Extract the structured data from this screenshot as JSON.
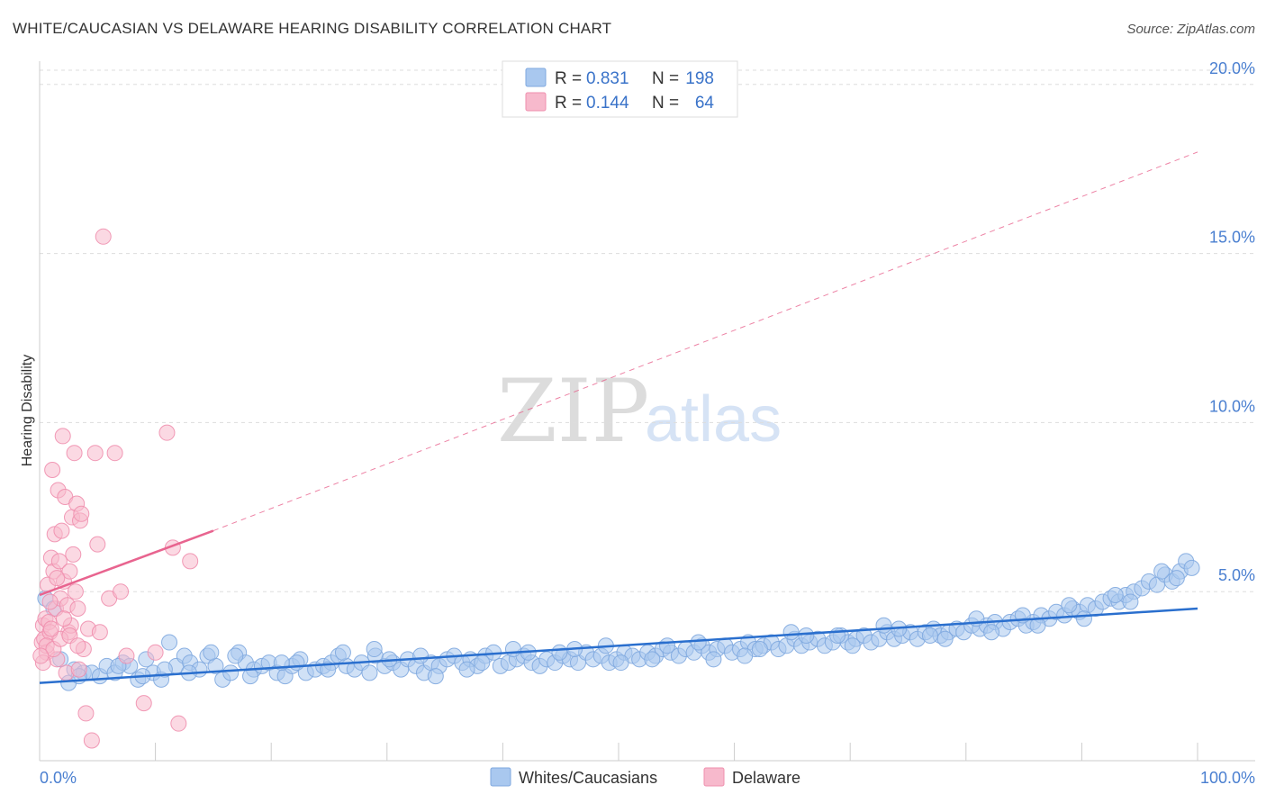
{
  "header": {
    "title": "WHITE/CAUCASIAN VS DELAWARE HEARING DISABILITY CORRELATION CHART",
    "source": "Source: ZipAtlas.com"
  },
  "watermark": {
    "zip": "ZIP",
    "atlas": "atlas"
  },
  "legend": {
    "r_label": "R =",
    "n_label": "N =",
    "series": [
      {
        "name": "Whites/Caucasians",
        "r": "0.831",
        "n": "198",
        "color": "#a9c8ef",
        "stroke": "#7fa8df",
        "line": "#2a6fce"
      },
      {
        "name": "Delaware",
        "r": "0.144",
        "n": "64",
        "color": "#f7b9cc",
        "stroke": "#ef8fae",
        "line": "#e8648f"
      }
    ]
  },
  "chart_data": {
    "type": "scatter",
    "title": "WHITE/CAUCASIAN VS DELAWARE HEARING DISABILITY CORRELATION CHART",
    "xlabel": "",
    "ylabel": "Hearing Disability",
    "xlim": [
      0,
      100
    ],
    "ylim": [
      0,
      20.5
    ],
    "x_tick_labels": [
      "0.0%",
      "100.0%"
    ],
    "y_ticks": [
      {
        "value": 5,
        "label": "5.0%"
      },
      {
        "value": 10,
        "label": "10.0%"
      },
      {
        "value": 15,
        "label": "15.0%"
      },
      {
        "value": 20,
        "label": "20.0%"
      }
    ],
    "grid": true,
    "series": [
      {
        "name": "Whites/Caucasians",
        "r": 0.831,
        "n": 198,
        "trend": {
          "x0": 0,
          "y0": 2.3,
          "x1": 100,
          "y1": 4.5,
          "style": "solid"
        },
        "points": [
          [
            0.5,
            4.8
          ],
          [
            1.2,
            4.5
          ],
          [
            1.8,
            3.0
          ],
          [
            2.5,
            2.3
          ],
          [
            3.0,
            2.7
          ],
          [
            3.8,
            2.6
          ],
          [
            4.5,
            2.6
          ],
          [
            5.2,
            2.5
          ],
          [
            5.8,
            2.8
          ],
          [
            6.5,
            2.6
          ],
          [
            7.2,
            2.9
          ],
          [
            7.8,
            2.8
          ],
          [
            8.5,
            2.4
          ],
          [
            9.2,
            3.0
          ],
          [
            9.8,
            2.6
          ],
          [
            10.5,
            2.4
          ],
          [
            11.2,
            3.5
          ],
          [
            11.8,
            2.8
          ],
          [
            12.5,
            3.1
          ],
          [
            13.0,
            2.9
          ],
          [
            13.8,
            2.7
          ],
          [
            14.5,
            3.1
          ],
          [
            15.2,
            2.8
          ],
          [
            15.8,
            2.4
          ],
          [
            16.5,
            2.6
          ],
          [
            17.2,
            3.2
          ],
          [
            17.8,
            2.9
          ],
          [
            18.5,
            2.7
          ],
          [
            19.2,
            2.8
          ],
          [
            19.8,
            2.9
          ],
          [
            20.5,
            2.6
          ],
          [
            21.2,
            2.5
          ],
          [
            21.8,
            2.8
          ],
          [
            22.5,
            3.0
          ],
          [
            23.0,
            2.6
          ],
          [
            23.8,
            2.7
          ],
          [
            24.5,
            2.8
          ],
          [
            25.2,
            2.9
          ],
          [
            25.8,
            3.1
          ],
          [
            26.5,
            2.8
          ],
          [
            27.2,
            2.7
          ],
          [
            27.8,
            2.9
          ],
          [
            28.5,
            2.6
          ],
          [
            29.0,
            3.1
          ],
          [
            29.8,
            2.8
          ],
          [
            30.5,
            2.9
          ],
          [
            31.2,
            2.7
          ],
          [
            31.8,
            3.0
          ],
          [
            32.5,
            2.8
          ],
          [
            33.2,
            2.6
          ],
          [
            33.8,
            2.9
          ],
          [
            34.5,
            2.8
          ],
          [
            35.2,
            3.0
          ],
          [
            35.8,
            3.1
          ],
          [
            36.5,
            2.9
          ],
          [
            37.2,
            3.0
          ],
          [
            37.8,
            2.8
          ],
          [
            38.5,
            3.1
          ],
          [
            39.2,
            3.2
          ],
          [
            39.8,
            2.8
          ],
          [
            40.5,
            2.9
          ],
          [
            41.2,
            3.0
          ],
          [
            41.8,
            3.1
          ],
          [
            42.5,
            2.9
          ],
          [
            43.2,
            2.8
          ],
          [
            43.8,
            3.0
          ],
          [
            44.5,
            2.9
          ],
          [
            45.2,
            3.1
          ],
          [
            45.8,
            3.0
          ],
          [
            46.5,
            2.9
          ],
          [
            47.2,
            3.2
          ],
          [
            47.8,
            3.0
          ],
          [
            48.5,
            3.1
          ],
          [
            49.2,
            2.9
          ],
          [
            49.8,
            3.0
          ],
          [
            50.5,
            3.2
          ],
          [
            51.2,
            3.1
          ],
          [
            51.8,
            3.0
          ],
          [
            52.5,
            3.2
          ],
          [
            53.2,
            3.1
          ],
          [
            53.8,
            3.3
          ],
          [
            54.5,
            3.2
          ],
          [
            55.2,
            3.1
          ],
          [
            55.8,
            3.3
          ],
          [
            56.5,
            3.2
          ],
          [
            57.2,
            3.4
          ],
          [
            57.8,
            3.2
          ],
          [
            58.5,
            3.3
          ],
          [
            59.2,
            3.4
          ],
          [
            59.8,
            3.2
          ],
          [
            60.5,
            3.3
          ],
          [
            61.2,
            3.5
          ],
          [
            61.8,
            3.3
          ],
          [
            62.5,
            3.4
          ],
          [
            63.2,
            3.5
          ],
          [
            63.8,
            3.3
          ],
          [
            64.5,
            3.4
          ],
          [
            65.2,
            3.6
          ],
          [
            65.8,
            3.4
          ],
          [
            66.5,
            3.5
          ],
          [
            67.2,
            3.6
          ],
          [
            67.8,
            3.4
          ],
          [
            68.5,
            3.5
          ],
          [
            69.2,
            3.7
          ],
          [
            69.8,
            3.5
          ],
          [
            70.5,
            3.6
          ],
          [
            71.2,
            3.7
          ],
          [
            71.8,
            3.5
          ],
          [
            72.5,
            3.6
          ],
          [
            73.2,
            3.8
          ],
          [
            73.8,
            3.6
          ],
          [
            74.5,
            3.7
          ],
          [
            75.2,
            3.8
          ],
          [
            75.8,
            3.6
          ],
          [
            76.5,
            3.8
          ],
          [
            77.2,
            3.9
          ],
          [
            77.8,
            3.7
          ],
          [
            78.5,
            3.8
          ],
          [
            79.2,
            3.9
          ],
          [
            79.8,
            3.8
          ],
          [
            80.5,
            4.0
          ],
          [
            81.2,
            3.9
          ],
          [
            81.8,
            4.0
          ],
          [
            82.5,
            4.1
          ],
          [
            83.2,
            3.9
          ],
          [
            83.8,
            4.1
          ],
          [
            84.5,
            4.2
          ],
          [
            85.2,
            4.0
          ],
          [
            85.8,
            4.1
          ],
          [
            86.5,
            4.3
          ],
          [
            87.2,
            4.2
          ],
          [
            87.8,
            4.4
          ],
          [
            88.5,
            4.3
          ],
          [
            89.2,
            4.5
          ],
          [
            89.8,
            4.4
          ],
          [
            90.5,
            4.6
          ],
          [
            91.2,
            4.5
          ],
          [
            91.8,
            4.7
          ],
          [
            92.5,
            4.8
          ],
          [
            93.2,
            4.7
          ],
          [
            93.8,
            4.9
          ],
          [
            94.5,
            5.0
          ],
          [
            95.2,
            5.1
          ],
          [
            95.8,
            5.3
          ],
          [
            96.5,
            5.2
          ],
          [
            97.2,
            5.5
          ],
          [
            97.8,
            5.3
          ],
          [
            98.5,
            5.6
          ],
          [
            99.0,
            5.9
          ],
          [
            99.5,
            5.7
          ],
          [
            6.8,
            2.8
          ],
          [
            10.8,
            2.7
          ],
          [
            14.8,
            3.2
          ],
          [
            18.2,
            2.5
          ],
          [
            22.2,
            2.9
          ],
          [
            26.2,
            3.2
          ],
          [
            30.2,
            3.0
          ],
          [
            34.2,
            2.5
          ],
          [
            38.2,
            2.9
          ],
          [
            42.2,
            3.2
          ],
          [
            46.2,
            3.3
          ],
          [
            50.2,
            2.9
          ],
          [
            54.2,
            3.4
          ],
          [
            58.2,
            3.0
          ],
          [
            62.2,
            3.3
          ],
          [
            66.2,
            3.7
          ],
          [
            70.2,
            3.4
          ],
          [
            74.2,
            3.9
          ],
          [
            78.2,
            3.6
          ],
          [
            82.2,
            3.8
          ],
          [
            86.2,
            4.0
          ],
          [
            90.2,
            4.2
          ],
          [
            94.2,
            4.7
          ],
          [
            98.2,
            5.4
          ],
          [
            3.4,
            2.5
          ],
          [
            8.9,
            2.5
          ],
          [
            12.9,
            2.6
          ],
          [
            16.9,
            3.1
          ],
          [
            20.9,
            2.9
          ],
          [
            24.9,
            2.7
          ],
          [
            28.9,
            3.3
          ],
          [
            32.9,
            3.1
          ],
          [
            36.9,
            2.7
          ],
          [
            40.9,
            3.3
          ],
          [
            44.9,
            3.2
          ],
          [
            48.9,
            3.4
          ],
          [
            52.9,
            3.0
          ],
          [
            56.9,
            3.5
          ],
          [
            60.9,
            3.1
          ],
          [
            64.9,
            3.8
          ],
          [
            68.9,
            3.7
          ],
          [
            72.9,
            4.0
          ],
          [
            76.9,
            3.7
          ],
          [
            80.9,
            4.2
          ],
          [
            84.9,
            4.3
          ],
          [
            88.9,
            4.6
          ],
          [
            92.9,
            4.9
          ],
          [
            96.9,
            5.6
          ]
        ]
      },
      {
        "name": "Delaware",
        "r": 0.144,
        "n": 64,
        "trend": {
          "x0": 0,
          "y0": 4.9,
          "x1": 15,
          "y1": 6.8,
          "style": "solid"
        },
        "trend_extended": {
          "x0": 15,
          "y0": 6.8,
          "x1": 100,
          "y1": 18.0,
          "style": "dashed"
        },
        "points": [
          [
            0.2,
            3.5
          ],
          [
            0.3,
            4.0
          ],
          [
            0.4,
            3.6
          ],
          [
            0.5,
            4.2
          ],
          [
            0.6,
            3.2
          ],
          [
            0.7,
            5.2
          ],
          [
            0.8,
            4.1
          ],
          [
            0.9,
            3.8
          ],
          [
            1.0,
            6.0
          ],
          [
            1.1,
            8.6
          ],
          [
            1.2,
            5.6
          ],
          [
            1.3,
            6.7
          ],
          [
            1.4,
            4.5
          ],
          [
            1.5,
            3.0
          ],
          [
            1.6,
            8.0
          ],
          [
            1.7,
            5.9
          ],
          [
            1.8,
            4.8
          ],
          [
            1.9,
            6.8
          ],
          [
            2.0,
            9.6
          ],
          [
            2.1,
            5.3
          ],
          [
            2.2,
            7.8
          ],
          [
            2.3,
            2.6
          ],
          [
            2.4,
            4.6
          ],
          [
            2.5,
            3.8
          ],
          [
            2.6,
            5.6
          ],
          [
            2.7,
            4.0
          ],
          [
            2.8,
            7.2
          ],
          [
            2.9,
            6.1
          ],
          [
            3.0,
            9.1
          ],
          [
            3.1,
            5.0
          ],
          [
            3.2,
            7.6
          ],
          [
            3.3,
            4.5
          ],
          [
            3.4,
            2.7
          ],
          [
            3.5,
            7.1
          ],
          [
            3.6,
            7.3
          ],
          [
            3.8,
            3.3
          ],
          [
            4.0,
            1.4
          ],
          [
            4.2,
            3.9
          ],
          [
            4.5,
            0.6
          ],
          [
            4.8,
            9.1
          ],
          [
            5.0,
            6.4
          ],
          [
            5.2,
            3.8
          ],
          [
            5.5,
            15.5
          ],
          [
            6.0,
            4.8
          ],
          [
            6.5,
            9.1
          ],
          [
            7.0,
            5.0
          ],
          [
            7.5,
            3.1
          ],
          [
            9.0,
            1.7
          ],
          [
            10.0,
            3.2
          ],
          [
            11.0,
            9.7
          ],
          [
            11.5,
            6.3
          ],
          [
            12.0,
            1.1
          ],
          [
            13.0,
            5.9
          ],
          [
            0.3,
            2.9
          ],
          [
            0.6,
            3.4
          ],
          [
            0.9,
            4.7
          ],
          [
            1.2,
            3.3
          ],
          [
            1.5,
            5.4
          ],
          [
            1.8,
            3.6
          ],
          [
            2.1,
            4.2
          ],
          [
            2.6,
            3.7
          ],
          [
            3.3,
            3.4
          ],
          [
            0.1,
            3.1
          ],
          [
            1.0,
            3.9
          ]
        ]
      }
    ]
  }
}
